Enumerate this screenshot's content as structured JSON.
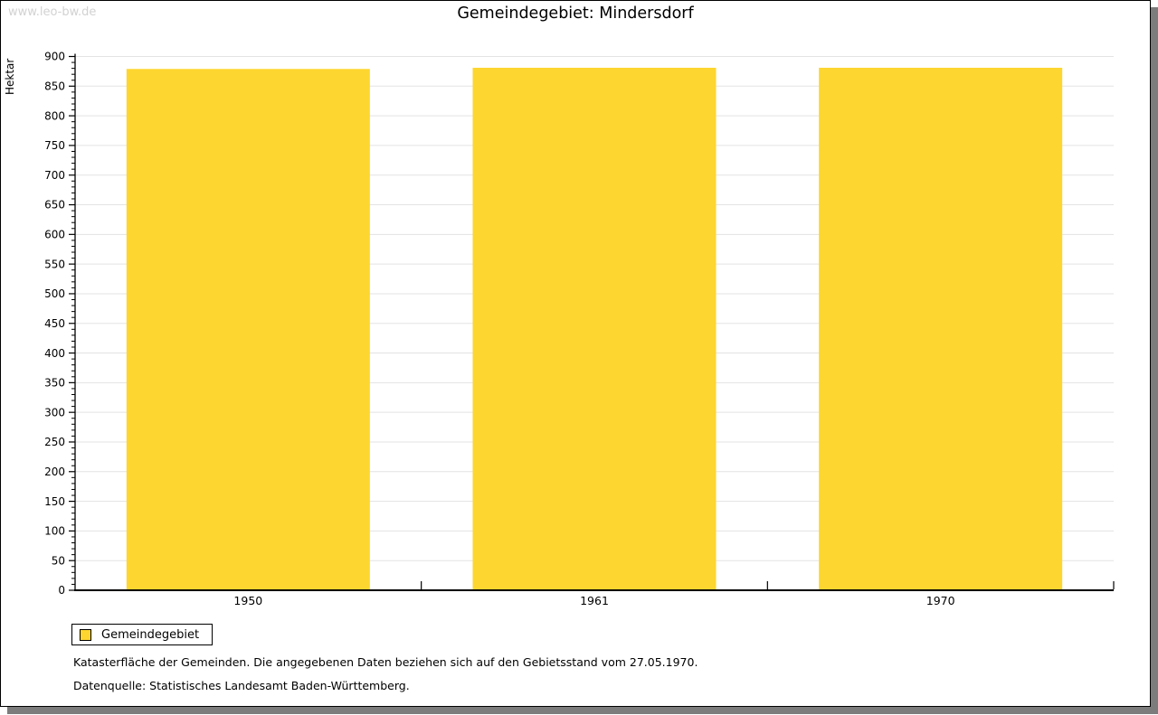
{
  "page": {
    "watermark": "www.leo-bw.de",
    "title": "Gemeindegebiet: Mindersdorf"
  },
  "chart_data": {
    "type": "bar",
    "title": "Gemeindegebiet: Mindersdorf",
    "categories": [
      "1950",
      "1961",
      "1970"
    ],
    "series": [
      {
        "name": "Gemeindegebiet",
        "values": [
          879,
          881,
          881
        ]
      }
    ],
    "xlabel": "",
    "ylabel": "Hektar",
    "ylim": [
      0,
      900
    ],
    "y_major_step": 50,
    "y_minor_step": 10,
    "grid": true,
    "legend_position": "bottom-left",
    "bar_color": "#fdd62f",
    "grid_color": "#e3e3e3",
    "axis_color": "#000000"
  },
  "legend": {
    "label": "Gemeindegebiet",
    "swatch_color": "#fdd62f"
  },
  "footnotes": [
    "Katasterfläche der Gemeinden. Die angegebenen Daten beziehen sich auf den Gebietsstand vom 27.05.1970.",
    "Datenquelle: Statistisches Landesamt Baden-Württemberg."
  ]
}
